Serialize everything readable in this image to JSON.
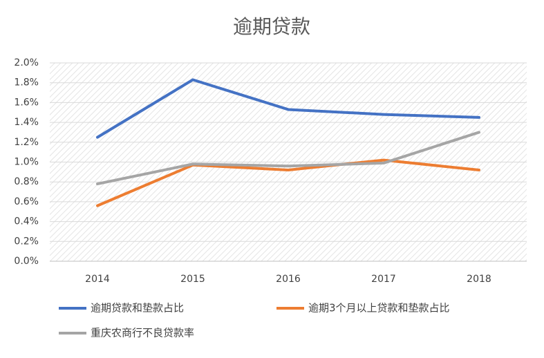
{
  "chart_data": {
    "type": "line",
    "title": "逾期贷款",
    "categories": [
      "2014",
      "2015",
      "2016",
      "2017",
      "2018"
    ],
    "series": [
      {
        "name": "逾期贷款和垫款占比",
        "color": "#4472c4",
        "values": [
          1.25,
          1.83,
          1.53,
          1.48,
          1.45
        ]
      },
      {
        "name": "逾期3个月以上贷款和垫款占比",
        "color": "#ed7d31",
        "values": [
          0.56,
          0.97,
          0.92,
          1.02,
          0.92
        ]
      },
      {
        "name": "重庆农商行不良贷款率",
        "color": "#a5a5a5",
        "values": [
          0.78,
          0.98,
          0.96,
          0.99,
          1.3
        ]
      }
    ],
    "ylim": [
      0,
      2
    ],
    "yticks": [
      {
        "value": 0,
        "label": "0.0%"
      },
      {
        "value": 0.2,
        "label": "0.2%"
      },
      {
        "value": 0.4,
        "label": "0.4%"
      },
      {
        "value": 0.6,
        "label": "0.6%"
      },
      {
        "value": 0.8,
        "label": "0.8%"
      },
      {
        "value": 1.0,
        "label": "1.0%"
      },
      {
        "value": 1.2,
        "label": "1.2%"
      },
      {
        "value": 1.4,
        "label": "1.4%"
      },
      {
        "value": 1.6,
        "label": "1.6%"
      },
      {
        "value": 1.8,
        "label": "1.8%"
      },
      {
        "value": 2.0,
        "label": "2.0%"
      }
    ],
    "grid": true,
    "legend": "bottom"
  }
}
